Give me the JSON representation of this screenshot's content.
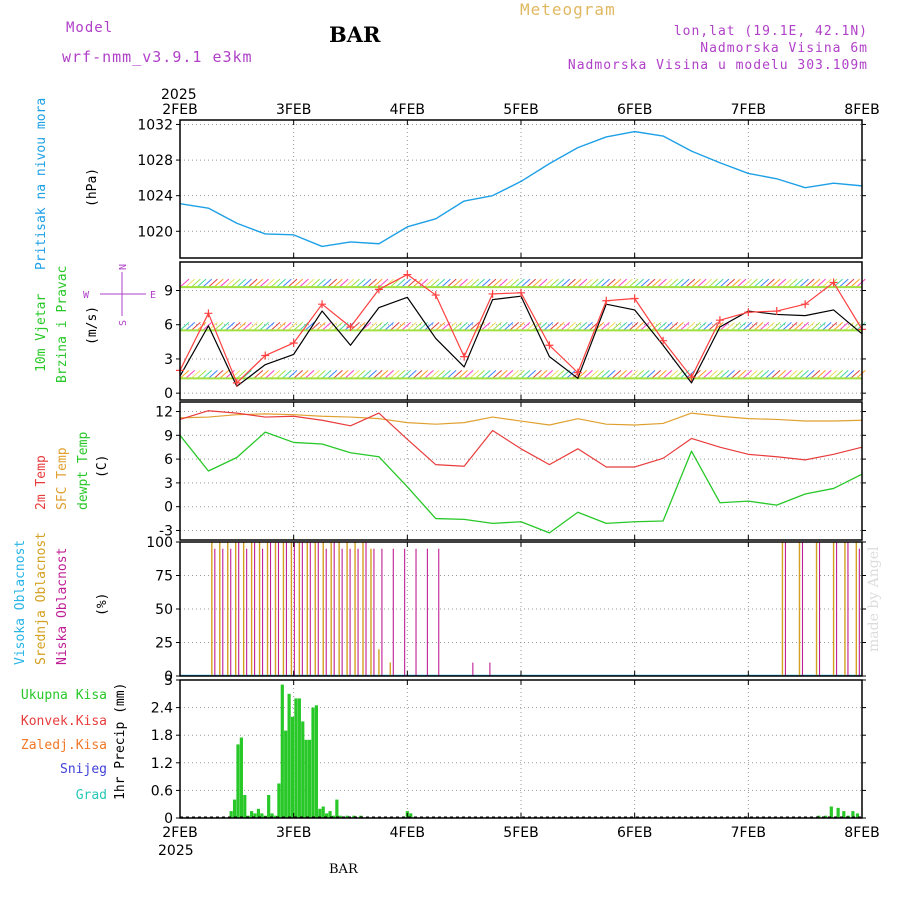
{
  "header": {
    "title": "Meteogram",
    "model_label": "Model",
    "model_name": "wrf-nmm_v3.9.1 e3km",
    "station": "BAR",
    "lonlat": "lon,lat (19.1E, 42.1N)",
    "elevation": "Nadmorska Visina 6m",
    "model_elevation": "Nadmorska Visina u modelu 303.109m",
    "footer_station": "BAR",
    "watermark": "made by Angel"
  },
  "colors": {
    "pressure": "#1ea0e6",
    "temp2m": "#e83c3c",
    "sfc": "#e0a030",
    "dewpt": "#28c828",
    "high_cloud": "#28b4e6",
    "mid_cloud": "#d4a020",
    "low_cloud": "#c01e96",
    "precip": "#28c828",
    "wind_speed": "#000000",
    "wind_gust": "#ff4040",
    "title": "#e0b860",
    "info": "#b040c8"
  },
  "x_axis": {
    "year": "2025",
    "dates": [
      "2FEB",
      "3FEB",
      "4FEB",
      "5FEB",
      "6FEB",
      "7FEB",
      "8FEB"
    ]
  },
  "chart_data": [
    {
      "type": "line",
      "title": "Pritisak na nivou mora",
      "ylabel": "(hPa)",
      "ylim": [
        1017,
        1032.5
      ],
      "yticks": [
        1020,
        1024,
        1028,
        1032
      ],
      "x": [
        0,
        0.25,
        0.5,
        0.75,
        1,
        1.25,
        1.5,
        1.75,
        2,
        2.25,
        2.5,
        2.75,
        3,
        3.25,
        3.5,
        3.75,
        4,
        4.25,
        4.5,
        4.75,
        5,
        5.25,
        5.5,
        5.75,
        6
      ],
      "series": [
        {
          "name": "pressure",
          "values": [
            1023.1,
            1022.6,
            1020.9,
            1019.7,
            1019.6,
            1018.3,
            1018.8,
            1018.6,
            1020.5,
            1021.4,
            1023.4,
            1024.0,
            1025.6,
            1027.6,
            1029.4,
            1030.6,
            1031.2,
            1030.7,
            1029.0,
            1027.7,
            1026.5,
            1025.9,
            1024.9,
            1025.4,
            1025.1
          ]
        }
      ]
    },
    {
      "type": "line",
      "title": "10m Vjetar Brzina i Pravac",
      "ylabel": "(m/s)",
      "ylim": [
        -0.6,
        11.5
      ],
      "yticks": [
        0,
        3,
        6,
        9
      ],
      "direction_legend": [
        "N",
        "W",
        "E",
        "S"
      ],
      "x": [
        0,
        0.25,
        0.5,
        0.75,
        1,
        1.25,
        1.5,
        1.75,
        2,
        2.25,
        2.5,
        2.75,
        3,
        3.25,
        3.5,
        3.75,
        4,
        4.25,
        4.5,
        4.75,
        5,
        5.25,
        5.5,
        5.75,
        6
      ],
      "series": [
        {
          "name": "speed",
          "values": [
            1.5,
            5.9,
            0.6,
            2.5,
            3.4,
            7.2,
            4.2,
            7.5,
            8.4,
            4.8,
            2.3,
            8.2,
            8.5,
            3.2,
            1.3,
            7.8,
            7.3,
            4.2,
            0.9,
            5.8,
            7.2,
            6.9,
            6.8,
            7.3,
            5.2
          ]
        },
        {
          "name": "gust",
          "values": [
            2.0,
            7.0,
            0.9,
            3.3,
            4.4,
            7.8,
            5.8,
            9.1,
            10.4,
            8.6,
            3.2,
            8.7,
            8.8,
            4.2,
            1.8,
            8.1,
            8.3,
            4.6,
            1.4,
            6.4,
            7.1,
            7.2,
            7.8,
            9.7,
            5.6
          ]
        }
      ]
    },
    {
      "type": "line",
      "title": "2m Temp / SFC Temp / dewpt Temp",
      "ylabel": "(C)",
      "ylim": [
        -4.2,
        13.2
      ],
      "yticks": [
        -3,
        0,
        3,
        6,
        9,
        12
      ],
      "x": [
        0,
        0.25,
        0.5,
        0.75,
        1,
        1.25,
        1.5,
        1.75,
        2,
        2.25,
        2.5,
        2.75,
        3,
        3.25,
        3.5,
        3.75,
        4,
        4.25,
        4.5,
        4.75,
        5,
        5.25,
        5.5,
        5.75,
        6
      ],
      "series": [
        {
          "name": "2m Temp",
          "values": [
            11.0,
            12.1,
            11.8,
            11.3,
            11.4,
            10.9,
            10.2,
            11.8,
            8.5,
            5.3,
            5.1,
            9.6,
            7.3,
            5.3,
            7.3,
            5.0,
            5.0,
            6.1,
            8.6,
            7.5,
            6.6,
            6.3,
            5.9,
            6.6,
            7.5
          ]
        },
        {
          "name": "SFC Temp",
          "values": [
            11.2,
            11.3,
            11.6,
            11.7,
            11.6,
            11.4,
            11.3,
            11.1,
            10.6,
            10.4,
            10.6,
            11.3,
            10.8,
            10.3,
            11.1,
            10.4,
            10.3,
            10.5,
            11.8,
            11.4,
            11.1,
            11.0,
            10.8,
            10.8,
            10.9
          ]
        },
        {
          "name": "dewpt Temp",
          "values": [
            9.0,
            4.5,
            6.2,
            9.4,
            8.1,
            7.9,
            6.8,
            6.3,
            2.5,
            -1.5,
            -1.6,
            -2.1,
            -1.9,
            -3.3,
            -0.7,
            -2.1,
            -1.9,
            -1.8,
            7.0,
            0.5,
            0.7,
            0.2,
            1.6,
            2.3,
            4.1
          ]
        }
      ]
    },
    {
      "type": "bar",
      "title": "Visoka Oblacnost / Srednja Oblacnost / Niska Oblacnost",
      "ylabel": "(%)",
      "ylim": [
        0,
        100
      ],
      "yticks": [
        0,
        25,
        50,
        75,
        100
      ],
      "x": [
        0.28,
        0.35,
        0.42,
        0.49,
        0.56,
        0.63,
        0.7,
        0.77,
        0.84,
        0.91,
        0.98,
        1.05,
        1.12,
        1.19,
        1.26,
        1.33,
        1.4,
        1.47,
        1.54,
        1.61,
        1.68,
        1.75,
        1.85,
        1.95,
        2.05,
        2.15,
        2.25,
        2.55,
        2.7,
        5.3,
        5.45,
        5.6,
        5.75,
        5.85,
        5.95
      ],
      "series": [
        {
          "name": "Srednja",
          "values": [
            100,
            100,
            100,
            100,
            100,
            100,
            100,
            100,
            100,
            100,
            100,
            100,
            100,
            100,
            100,
            100,
            100,
            100,
            100,
            100,
            95,
            20,
            10,
            0,
            0,
            0,
            0,
            0,
            0,
            100,
            100,
            100,
            100,
            100,
            100
          ]
        },
        {
          "name": "Niska",
          "values": [
            95,
            95,
            95,
            100,
            95,
            100,
            95,
            100,
            100,
            100,
            100,
            100,
            100,
            100,
            95,
            100,
            95,
            95,
            95,
            100,
            95,
            95,
            95,
            95,
            95,
            95,
            95,
            10,
            10,
            100,
            100,
            100,
            100,
            100,
            95
          ]
        }
      ]
    },
    {
      "type": "bar",
      "title": "Ukupna Kisa / Konvek.Kisa / Zaledj.Kisa / Snijeg / Grad",
      "ylabel": "1hr Precip (mm)",
      "ylim": [
        0,
        3
      ],
      "yticks": [
        0,
        0.6,
        1.2,
        1.8,
        2.4,
        3
      ],
      "legend": [
        "Ukupna Kisa",
        "Konvek.Kisa",
        "Zaledj.Kisa",
        "Snijeg",
        "Grad"
      ],
      "x": [
        0.45,
        0.48,
        0.51,
        0.54,
        0.57,
        0.6,
        0.63,
        0.66,
        0.69,
        0.72,
        0.75,
        0.78,
        0.81,
        0.84,
        0.87,
        0.9,
        0.93,
        0.96,
        0.99,
        1.02,
        1.05,
        1.08,
        1.11,
        1.14,
        1.17,
        1.2,
        1.23,
        1.26,
        1.29,
        1.32,
        1.35,
        1.38,
        1.41,
        1.47,
        1.53,
        1.59,
        2.0,
        2.03,
        5.62,
        5.68,
        5.73,
        5.79,
        5.84,
        5.88,
        5.92,
        5.96
      ],
      "series": [
        {
          "name": "Ukupna Kisa",
          "values": [
            0.15,
            0.4,
            1.6,
            1.75,
            0.5,
            0.05,
            0.15,
            0.1,
            0.2,
            0.1,
            0.05,
            0.5,
            0.1,
            0.05,
            0.75,
            2.9,
            1.9,
            2.7,
            2.2,
            2.6,
            2.6,
            2.1,
            1.7,
            1.7,
            2.4,
            2.45,
            0.2,
            0.25,
            0.1,
            0.15,
            0.05,
            0.4,
            0.05,
            0.05,
            0.05,
            0.05,
            0.15,
            0.1,
            0.05,
            0.05,
            0.25,
            0.22,
            0.15,
            0.05,
            0.15,
            0.1
          ]
        }
      ]
    }
  ]
}
